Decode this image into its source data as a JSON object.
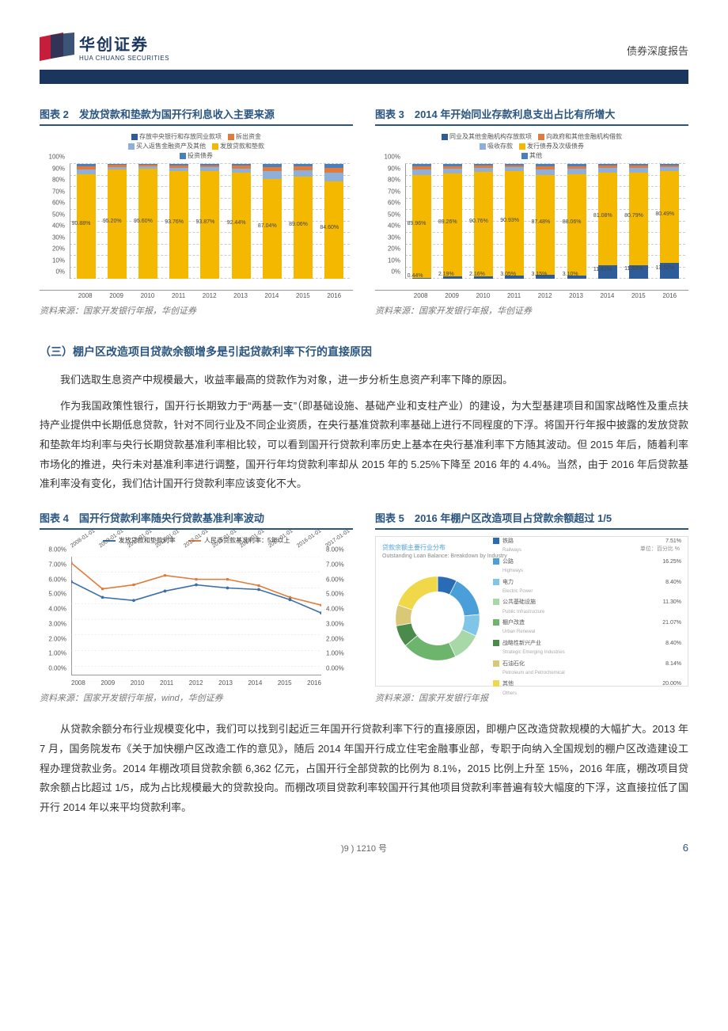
{
  "header": {
    "logo_cn": "华创证券",
    "logo_en": "HUA CHUANG SECURITIES",
    "right_text": "债券深度报告"
  },
  "colors": {
    "brand_navy": "#1a365d",
    "title_blue": "#2a557f",
    "bar_main": "#f5b800",
    "bar_blue1": "#4a7fbf",
    "bar_orange": "#e07b3c",
    "bar_blue2": "#8faed8",
    "bar_blue3": "#2e5c99",
    "line_blue": "#3b6fa8",
    "line_orange": "#e07b3c",
    "grid": "#cccccc"
  },
  "chart2": {
    "title": "图表 2　发放贷款和垫款为国开行利息收入主要来源",
    "legend": [
      {
        "label": "存放中央银行和存放同业款项",
        "color": "#2e5c99"
      },
      {
        "label": "拆出资金",
        "color": "#e07b3c"
      },
      {
        "label": "买入返售金融资产及其他",
        "color": "#8faed8"
      },
      {
        "label": "发放贷款和垫款",
        "color": "#f5b800"
      },
      {
        "label": "投资债券",
        "color": "#4a7fbf"
      }
    ],
    "y_ticks": [
      "0%",
      "10%",
      "20%",
      "30%",
      "40%",
      "50%",
      "60%",
      "70%",
      "80%",
      "90%",
      "100%"
    ],
    "years": [
      "2008",
      "2009",
      "2010",
      "2011",
      "2012",
      "2013",
      "2014",
      "2015",
      "2016"
    ],
    "main_pct": [
      90.88,
      95.2,
      95.6,
      93.76,
      93.87,
      92.44,
      87.04,
      89.06,
      84.6
    ],
    "top_rest": [
      9.12,
      4.8,
      4.4,
      6.24,
      6.13,
      7.56,
      12.96,
      10.94,
      15.4
    ],
    "source": "资料来源：国家开发银行年报，华创证券"
  },
  "chart3": {
    "title": "图表 3　2014 年开始同业存款利息支出占比有所增大",
    "legend": [
      {
        "label": "同业及其他金融机构存放款项",
        "color": "#2e5c99"
      },
      {
        "label": "向政府和其他金融机构借款",
        "color": "#e07b3c"
      },
      {
        "label": "吸收存款",
        "color": "#8faed8"
      },
      {
        "label": "发行债券及次级债券",
        "color": "#f5b800"
      },
      {
        "label": "其他",
        "color": "#4a7fbf"
      }
    ],
    "y_ticks": [
      "0%",
      "10%",
      "20%",
      "30%",
      "40%",
      "50%",
      "60%",
      "70%",
      "80%",
      "90%",
      "100%"
    ],
    "years": [
      "2008",
      "2009",
      "2010",
      "2011",
      "2012",
      "2013",
      "2014",
      "2015",
      "2016"
    ],
    "main_pct": [
      89.96,
      89.26,
      90.76,
      90.93,
      87.48,
      88.06,
      81.08,
      80.79,
      80.49
    ],
    "bottom_pct": [
      0.44,
      2.19,
      2.16,
      3.05,
      3.15,
      3.1,
      11.61,
      11.92,
      13.52
    ],
    "source": "资料来源：国家开发银行年报，华创证券"
  },
  "section3_heading": "（三）棚户区改造项目贷款余额增多是引起贷款利率下行的直接原因",
  "para1": "我们选取生息资产中规模最大，收益率最高的贷款作为对象，进一步分析生息资产利率下降的原因。",
  "para2": "作为我国政策性银行，国开行长期致力于“两基一支”（即基础设施、基础产业和支柱产业）的建设，为大型基建项目和国家战略性及重点扶持产业提供中长期低息贷款，针对不同行业及不同企业资质，在央行基准贷款利率基础上进行不同程度的下浮。将国开行年报中披露的发放贷款和垫款年均利率与央行长期贷款基准利率相比较，可以看到国开行贷款利率历史上基本在央行基准利率下方随其波动。但 2015 年后，随着利率市场化的推进，央行未对基准利率进行调整，国开行年均贷款利率却从 2015 年的 5.25%下降至 2016 年的 4.4%。当然，由于 2016 年后贷款基准利率没有变化，我们估计国开行贷款利率应该变化不大。",
  "chart4": {
    "title": "图表 4　国开行贷款利率随央行贷款基准利率波动",
    "legend": [
      {
        "label": "发放贷款和垫款利率",
        "color": "#3b6fa8"
      },
      {
        "label": "人民币贷款基准利率：5年以上",
        "color": "#e07b3c"
      }
    ],
    "x_top": [
      "2008-01-01",
      "2009-01-01",
      "2010-01-01",
      "2011-01-01",
      "2012-01-01",
      "2013-01-01",
      "2014-01-01",
      "2015-01-01",
      "2016-01-01",
      "2017-01-01"
    ],
    "x_bottom": [
      "2008",
      "2009",
      "2010",
      "2011",
      "2012",
      "2013",
      "2014",
      "2015",
      "2016"
    ],
    "y_ticks": [
      "0.00%",
      "1.00%",
      "2.00%",
      "3.00%",
      "4.00%",
      "5.00%",
      "6.00%",
      "7.00%",
      "8.00%"
    ],
    "y_max": 8.0,
    "series_blue": [
      6.4,
      5.4,
      5.2,
      5.8,
      6.2,
      6.0,
      5.9,
      5.25,
      4.4
    ],
    "series_orange": [
      7.6,
      5.94,
      6.2,
      6.8,
      6.55,
      6.55,
      6.15,
      5.4,
      4.9
    ],
    "source": "资料来源：国家开发银行年报，wind，华创证券"
  },
  "chart5": {
    "title": "图表 5　2016 年棚户区改造项目占贷款余额超过 1/5",
    "box_title_cn": "贷款余额主要行业分布",
    "box_title_en": "Outstanding Loan Balance: Breakdown by Industry",
    "unit": "单位：百分比 %",
    "items": [
      {
        "cn": "铁路",
        "en": "Railways",
        "val": "7.51%",
        "color": "#2a6bb5"
      },
      {
        "cn": "公路",
        "en": "Highways",
        "val": "16.25%",
        "color": "#4a9fd8"
      },
      {
        "cn": "电力",
        "en": "Electric Power",
        "val": "8.40%",
        "color": "#7ec5e8"
      },
      {
        "cn": "公共基础设施",
        "en": "Public Infrastructure",
        "val": "11.30%",
        "color": "#a8d8a8"
      },
      {
        "cn": "棚户改造",
        "en": "Urban Renewal",
        "val": "21.07%",
        "color": "#6db56d"
      },
      {
        "cn": "战略性新兴产业",
        "en": "Strategic Emerging Industries",
        "val": "8.40%",
        "color": "#4a8a4a"
      },
      {
        "cn": "石油石化",
        "en": "Petroleum and Petrochemical",
        "val": "8.14%",
        "color": "#d8c878"
      },
      {
        "cn": "其他",
        "en": "Others",
        "val": "20.00%",
        "color": "#f0d848"
      }
    ],
    "source": "资料来源：国家开发银行年报"
  },
  "para3": "从贷款余额分布行业规模变化中，我们可以找到引起近三年国开行贷款利率下行的直接原因，即棚户区改造贷款规模的大幅扩大。2013 年 7 月，国务院发布《关于加快棚户区改造工作的意见》，随后 2014 年国开行成立住宅金融事业部，专职于向纳入全国规划的棚户区改造建设工程办理贷款业务。2014 年棚改项目贷款余额 6,362 亿元，占国开行全部贷款的比例为 8.1%，2015 比例上升至 15%，2016 年底，棚改项目贷款余额占比超过 1/5，成为占比规模最大的贷款投向。而棚改项目贷款利率较国开行其他项目贷款利率普遍有较大幅度的下浮，这直接拉低了国开行 2014 年以来平均贷款利率。",
  "footer": {
    "left": ")9 ) 1210 号",
    "page": "6"
  }
}
